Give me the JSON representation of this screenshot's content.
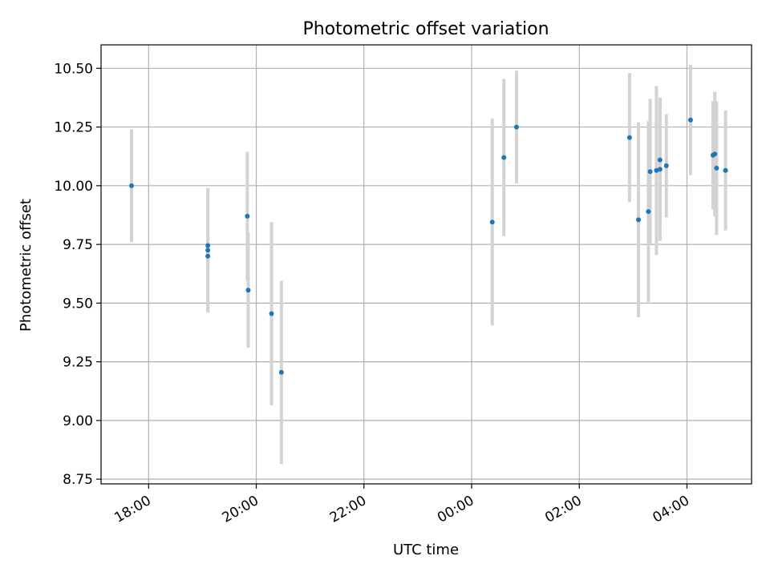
{
  "chart_data": {
    "type": "scatter",
    "title": "Photometric offset variation",
    "xlabel": "UTC time",
    "ylabel": "Photometric offset",
    "x_axis": "time",
    "xlim": [
      "17:07",
      "05:12"
    ],
    "ylim": [
      8.73,
      10.6
    ],
    "xticks": [
      "18:00",
      "20:00",
      "22:00",
      "00:00",
      "02:00",
      "04:00"
    ],
    "yticks": [
      "8.75",
      "9.00",
      "9.25",
      "9.50",
      "9.75",
      "10.00",
      "10.25",
      "10.50"
    ],
    "grid": true,
    "legend": "none",
    "colors": {
      "points": "#1f77b4",
      "errorbars": "#d3d3d3",
      "grid": "#b0b0b0",
      "axes": "#000000"
    },
    "series": [
      {
        "points": [
          {
            "x": "17:41",
            "y": 10.0,
            "err": 0.24
          },
          {
            "x": "19:06",
            "y": 9.745,
            "err": 0.245
          },
          {
            "x": "19:06",
            "y": 9.725,
            "err": 0.26
          },
          {
            "x": "19:06",
            "y": 9.7,
            "err": 0.24
          },
          {
            "x": "19:50",
            "y": 9.87,
            "err": 0.275
          },
          {
            "x": "19:51",
            "y": 9.555,
            "err": 0.245
          },
          {
            "x": "20:17",
            "y": 9.455,
            "err": 0.39
          },
          {
            "x": "20:28",
            "y": 9.205,
            "err": 0.39
          },
          {
            "x": "00:23",
            "y": 9.845,
            "err": 0.44
          },
          {
            "x": "00:36",
            "y": 10.12,
            "err": 0.335
          },
          {
            "x": "00:50",
            "y": 10.25,
            "err": 0.24
          },
          {
            "x": "02:56",
            "y": 10.205,
            "err": 0.275
          },
          {
            "x": "03:06",
            "y": 9.855,
            "err": 0.415
          },
          {
            "x": "03:17",
            "y": 9.89,
            "err": 0.385
          },
          {
            "x": "03:19",
            "y": 10.06,
            "err": 0.31
          },
          {
            "x": "03:26",
            "y": 10.065,
            "err": 0.36
          },
          {
            "x": "03:30",
            "y": 10.11,
            "err": 0.265
          },
          {
            "x": "03:30",
            "y": 10.07,
            "err": 0.305
          },
          {
            "x": "03:37",
            "y": 10.085,
            "err": 0.22
          },
          {
            "x": "04:04",
            "y": 10.28,
            "err": 0.235
          },
          {
            "x": "04:29",
            "y": 10.13,
            "err": 0.23
          },
          {
            "x": "04:31",
            "y": 10.135,
            "err": 0.265
          },
          {
            "x": "04:33",
            "y": 10.075,
            "err": 0.285
          },
          {
            "x": "04:43",
            "y": 10.065,
            "err": 0.255
          }
        ]
      }
    ]
  }
}
